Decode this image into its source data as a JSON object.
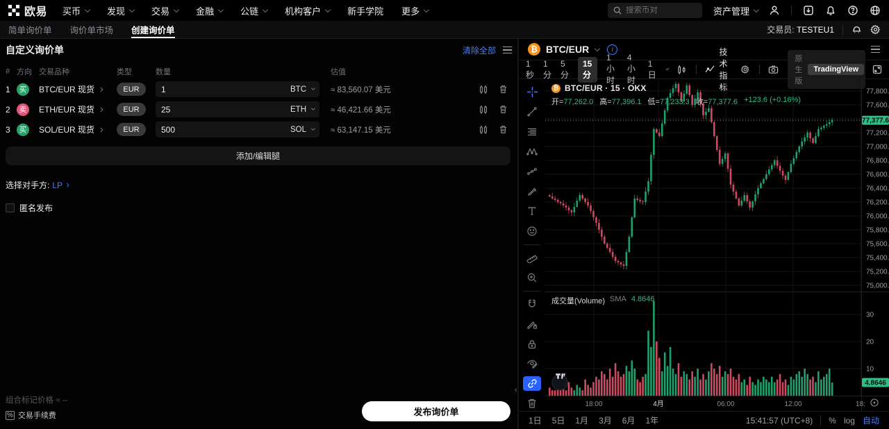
{
  "topnav": {
    "logo_text": "欧易",
    "menu": [
      {
        "label": "买币"
      },
      {
        "label": "发现"
      },
      {
        "label": "交易"
      },
      {
        "label": "金融"
      },
      {
        "label": "公链"
      },
      {
        "label": "机构客户"
      },
      {
        "label": "新手学院"
      },
      {
        "label": "更多"
      }
    ],
    "search_placeholder": "搜索币对",
    "assets_label": "资产管理"
  },
  "subnav": {
    "tabs": [
      {
        "label": "简单询价单"
      },
      {
        "label": "询价单市场"
      },
      {
        "label": "创建询价单"
      }
    ],
    "trader_label": "交易员:",
    "trader_value": "TESTEU1"
  },
  "panel": {
    "title": "自定义询价单",
    "clear_all": "清除全部",
    "columns": {
      "num": "#",
      "side": "方向",
      "instrument": "交易品种",
      "type": "类型",
      "amount": "数量",
      "value": "估值"
    },
    "rows": [
      {
        "index": "1",
        "side": "买",
        "instrument": "BTC/EUR 现货",
        "type": "EUR",
        "amount": "1",
        "unit": "BTC",
        "value": "≈ 83,560.07 美元"
      },
      {
        "index": "2",
        "side": "卖",
        "instrument": "ETH/EUR 现货",
        "type": "EUR",
        "amount": "25",
        "unit": "ETH",
        "value": "≈ 46,421.66 美元"
      },
      {
        "index": "3",
        "side": "买",
        "instrument": "SOL/EUR 现货",
        "type": "EUR",
        "amount": "500",
        "unit": "SOL",
        "value": "≈ 63,147.15 美元"
      }
    ],
    "add_button": "添加/编辑腿",
    "counterparty_label": "选择对手方:",
    "counterparty_value": "LP",
    "anonymous_label": "匿名发布",
    "footer_mark_price": "组合标记价格 ≈ --",
    "footer_fee_icon": "%",
    "footer_fee": "交易手续费",
    "publish_button": "发布询价单"
  },
  "chart": {
    "symbol": "BTC/EUR",
    "timeframes": [
      {
        "label": "1秒"
      },
      {
        "label": "1分"
      },
      {
        "label": "5分"
      },
      {
        "label": "15分"
      },
      {
        "label": "1小时"
      },
      {
        "label": "4小时"
      },
      {
        "label": "1日"
      }
    ],
    "active_timeframe": "15分",
    "indicators_label": "技术指标",
    "toggle_native": "原生版",
    "toggle_tv": "TradingView",
    "legend_title": "BTC/EUR · 15 · OKX",
    "ohlc_labels": {
      "open": "开=",
      "high": "高=",
      "low": "低=",
      "close": "收="
    },
    "ohlc_values": {
      "open": "77,262.0",
      "high": "77,396.1",
      "low": "77,233.3",
      "close": "77,377.6",
      "change": "+123.6 (+0.16%)"
    },
    "volume_legend_label": "成交量(Volume)",
    "volume_sma_label": "SMA",
    "volume_sma_value": "4.8646",
    "range_buttons": [
      {
        "label": "1日"
      },
      {
        "label": "5日"
      },
      {
        "label": "1月"
      },
      {
        "label": "3月"
      },
      {
        "label": "6月"
      },
      {
        "label": "1年"
      }
    ],
    "clock": "15:41:57 (UTC+8)",
    "percent_label": "%",
    "log_label": "log",
    "auto_label": "自动"
  },
  "chart_data": {
    "type": "candlestick",
    "symbol": "BTC/EUR",
    "interval": "15",
    "exchange": "OKX",
    "ohlc_legend": {
      "open": 77262.0,
      "high": 77396.1,
      "low": 77233.3,
      "close": 77377.6,
      "change": 123.6,
      "change_pct": 0.16
    },
    "last_price": 77377.6,
    "volume_sma": 4.8646,
    "y_axis": {
      "min": 75000,
      "max": 77800,
      "step": 200,
      "label_decimals": 1
    },
    "volume_axis": [
      10,
      20,
      30
    ],
    "x_axis_labels": [
      "18:00",
      "4月",
      "06:00",
      "12:00",
      "18:"
    ],
    "first_open": 76300,
    "closes": [
      76280,
      76250,
      76230,
      76200,
      76180,
      76150,
      76120,
      76080,
      76050,
      76130,
      76220,
      76300,
      76250,
      76200,
      76150,
      76070,
      75980,
      75900,
      75800,
      75700,
      75600,
      75540,
      75480,
      75410,
      75350,
      75330,
      75300,
      75280,
      75480,
      75700,
      75980,
      76250,
      76230,
      76210,
      76200,
      76350,
      76500,
      76880,
      77250,
      77200,
      77150,
      77330,
      77520,
      77700,
      77770,
      77840,
      77900,
      77780,
      77650,
      77760,
      77880,
      77740,
      77600,
      77690,
      77780,
      77620,
      77450,
      77500,
      77550,
      77350,
      77150,
      76950,
      76750,
      76820,
      76900,
      76680,
      76450,
      76350,
      76250,
      76150,
      76220,
      76300,
      76210,
      76120,
      76210,
      76310,
      76400,
      76470,
      76530,
      76600,
      76670,
      76730,
      76800,
      76720,
      76650,
      76580,
      76520,
      76630,
      76750,
      76830,
      76920,
      77000,
      77070,
      77130,
      77200,
      77120,
      77050,
      77150,
      77250,
      77270,
      77300,
      77320,
      77350,
      77377.6
    ],
    "volumes": [
      3,
      2,
      2,
      4,
      2,
      3,
      2,
      5,
      3,
      2,
      4,
      3,
      2,
      6,
      4,
      3,
      5,
      7,
      6,
      9,
      8,
      6,
      10,
      7,
      12,
      9,
      7,
      8,
      11,
      9,
      13,
      10,
      6,
      5,
      7,
      8,
      24,
      18,
      35,
      20,
      14,
      9,
      16,
      11,
      18,
      10,
      8,
      12,
      7,
      9,
      8,
      6,
      9,
      7,
      10,
      6,
      8,
      6,
      9,
      12,
      10,
      8,
      11,
      7,
      9,
      8,
      10,
      7,
      6,
      8,
      5,
      6,
      4,
      7,
      5,
      4,
      6,
      5,
      7,
      6,
      5,
      7,
      5,
      6,
      8,
      5,
      6,
      4,
      7,
      6,
      8,
      9,
      7,
      10,
      8,
      6,
      7,
      5,
      9,
      6,
      7,
      8,
      10,
      4.8646
    ],
    "colors": {
      "up": "#1fa16d",
      "down": "#d0495f",
      "accent": "#2ebd85"
    }
  }
}
